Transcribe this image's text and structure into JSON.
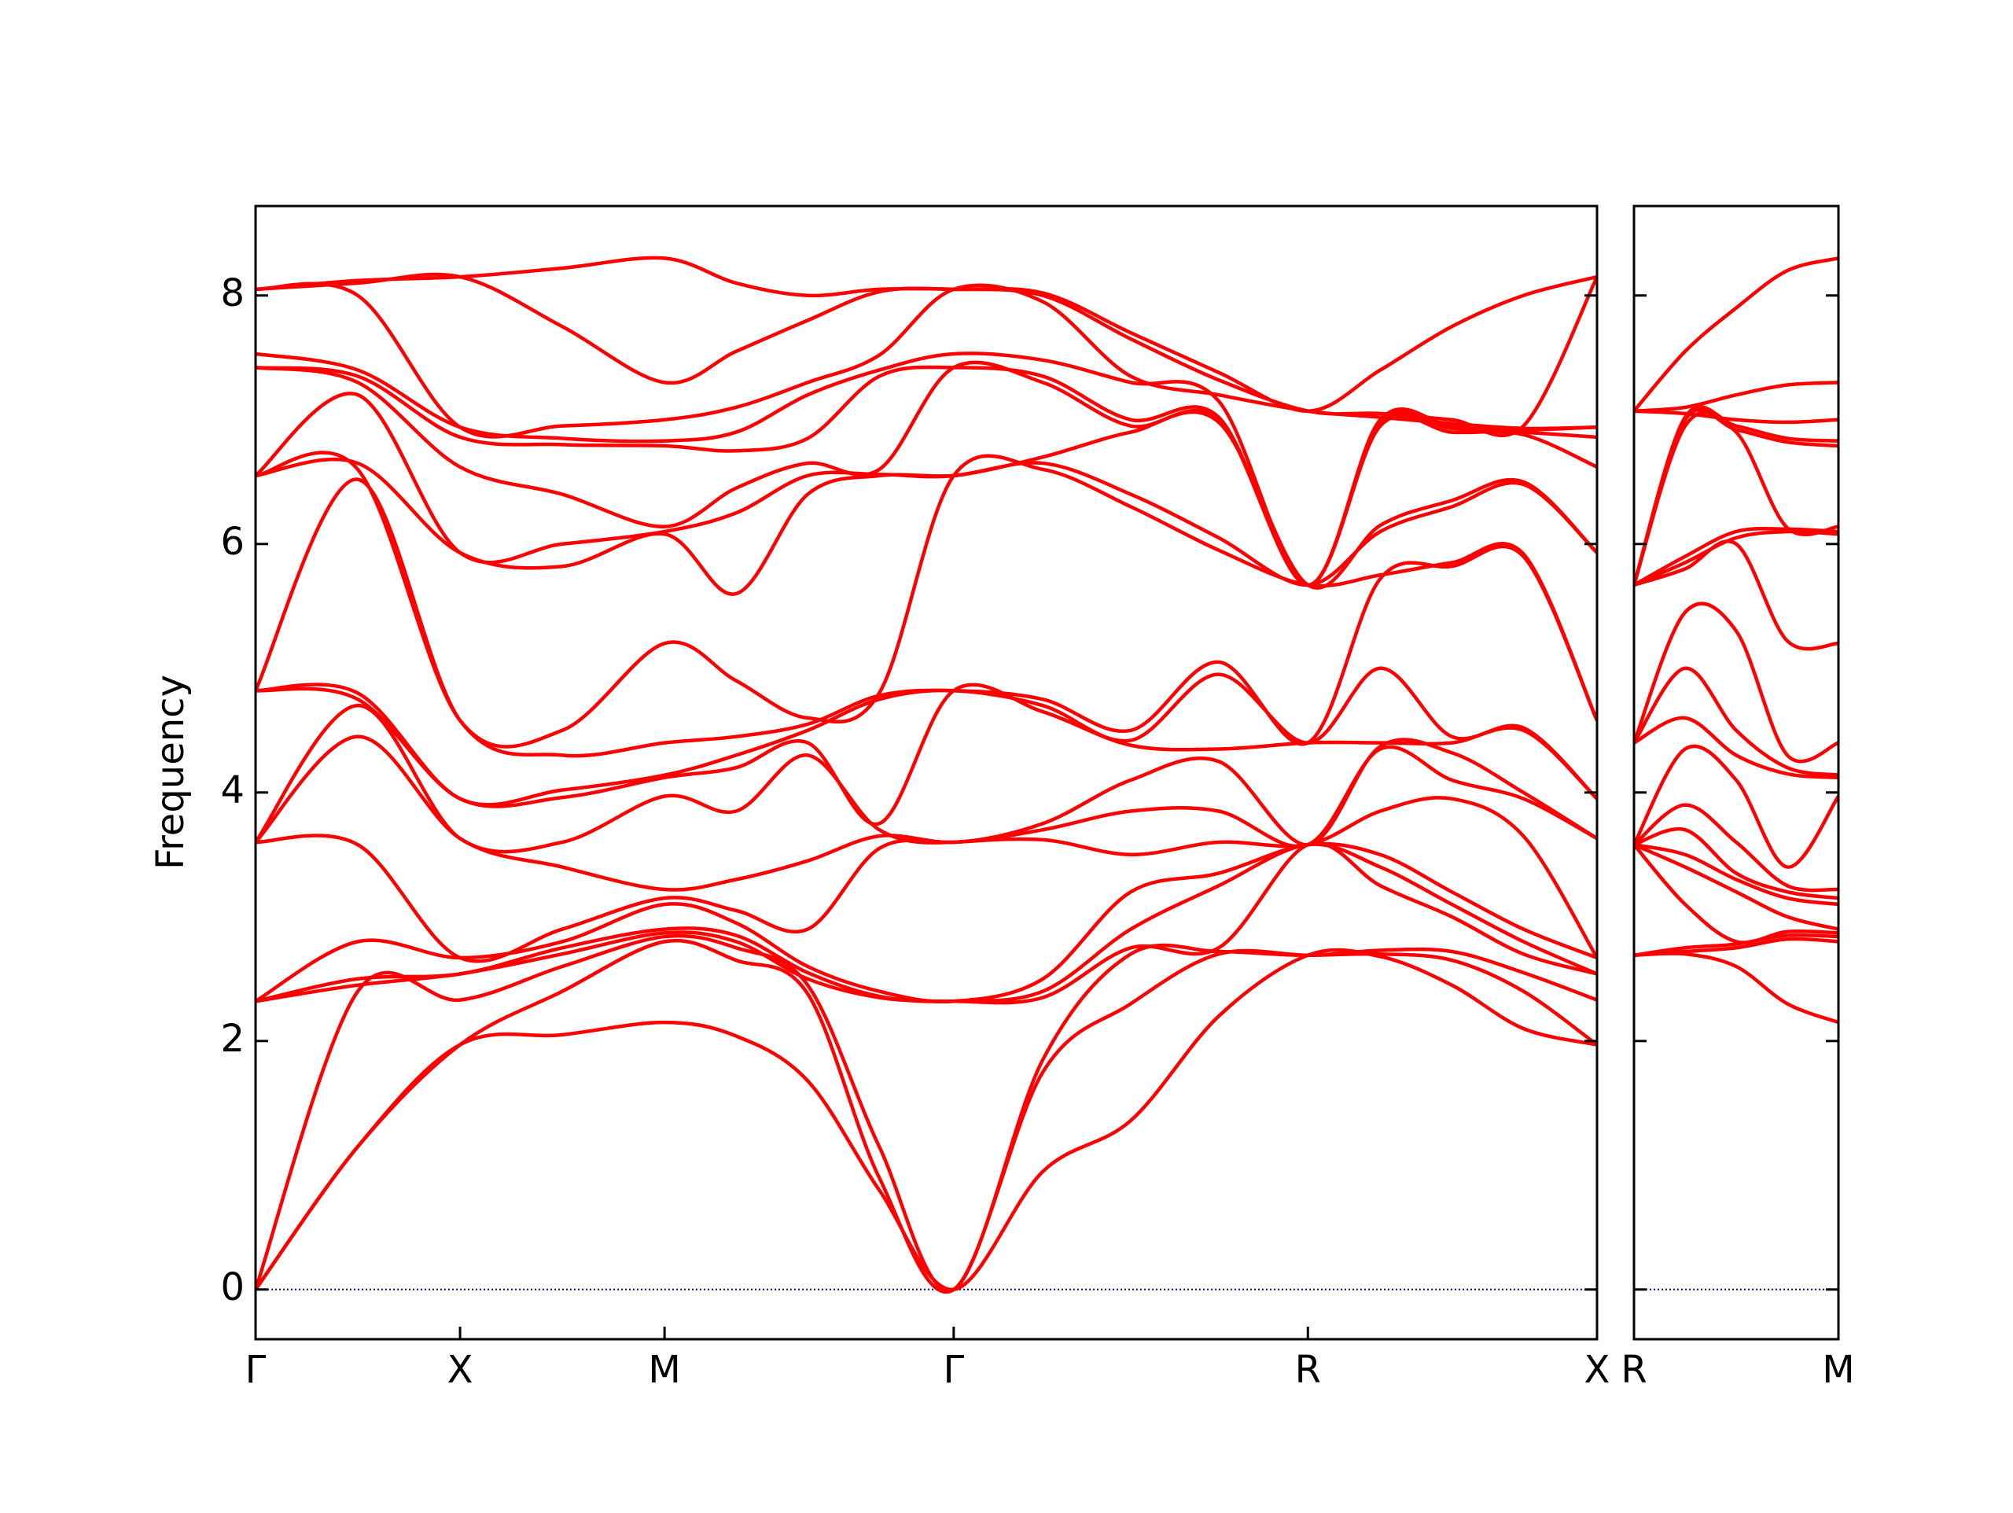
{
  "chart_data": [
    {
      "type": "line",
      "ylabel": "Frequency",
      "color": "#ff0000",
      "hline": 0,
      "hline_color": "#00008b",
      "xlim": [
        0,
        6.56
      ],
      "ylim": [
        -0.4,
        8.72
      ],
      "xticks": [
        {
          "value": 0,
          "label": "Γ"
        },
        {
          "value": 1,
          "label": "X"
        },
        {
          "value": 2,
          "label": "M"
        },
        {
          "value": 3.414,
          "label": "Γ"
        },
        {
          "value": 5.146,
          "label": "R"
        },
        {
          "value": 6.56,
          "label": "X"
        }
      ],
      "yticks": [
        0,
        2,
        4,
        6,
        8
      ],
      "x": [
        0,
        0.5,
        1,
        1.5,
        2,
        2.35,
        2.7,
        3.05,
        3.414,
        3.85,
        4.28,
        4.71,
        5.146,
        5.5,
        5.85,
        6.2,
        6.56
      ],
      "series": [
        {
          "values": [
            0,
            1.15,
            1.97,
            2.05,
            2.15,
            2.04,
            1.68,
            0.8,
            0,
            0.95,
            1.36,
            2.2,
            2.69,
            2.68,
            2.45,
            2.1,
            1.97
          ]
        },
        {
          "values": [
            0,
            1.15,
            1.97,
            2.4,
            2.8,
            2.65,
            2.38,
            0.9,
            0,
            1.75,
            2.3,
            2.7,
            2.69,
            2.7,
            2.65,
            2.4,
            1.97
          ]
        },
        {
          "values": [
            0,
            2.4,
            2.33,
            2.6,
            2.84,
            2.75,
            2.45,
            1.15,
            0,
            1.85,
            2.7,
            2.72,
            2.69,
            2.73,
            2.72,
            2.55,
            2.33
          ]
        },
        {
          "values": [
            2.32,
            2.45,
            2.54,
            2.7,
            2.87,
            2.8,
            2.5,
            2.35,
            2.32,
            2.35,
            2.75,
            2.75,
            3.58,
            3.25,
            3.0,
            2.7,
            2.54
          ]
        },
        {
          "values": [
            2.32,
            2.5,
            2.54,
            2.75,
            2.9,
            2.85,
            2.55,
            2.36,
            2.32,
            2.4,
            2.9,
            3.25,
            3.58,
            3.4,
            3.1,
            2.8,
            2.54
          ]
        },
        {
          "values": [
            2.32,
            2.8,
            2.67,
            2.8,
            3.1,
            2.95,
            2.6,
            2.4,
            2.32,
            2.5,
            3.2,
            3.35,
            3.58,
            3.5,
            3.2,
            2.9,
            2.67
          ]
        },
        {
          "values": [
            3.6,
            3.58,
            2.67,
            2.9,
            3.15,
            3.05,
            2.9,
            3.55,
            3.6,
            3.62,
            3.5,
            3.6,
            3.58,
            3.85,
            3.95,
            3.65,
            2.67
          ]
        },
        {
          "values": [
            3.6,
            4.45,
            3.63,
            3.4,
            3.22,
            3.3,
            3.45,
            3.65,
            3.6,
            3.7,
            3.85,
            3.85,
            3.58,
            4.35,
            4.1,
            3.95,
            3.63
          ]
        },
        {
          "values": [
            3.6,
            4.7,
            3.63,
            3.6,
            3.97,
            3.85,
            4.3,
            3.7,
            3.6,
            3.75,
            4.1,
            4.25,
            3.58,
            4.37,
            4.32,
            4.0,
            3.63
          ]
        },
        {
          "values": [
            4.82,
            4.75,
            3.95,
            3.96,
            4.12,
            4.2,
            4.4,
            3.75,
            4.82,
            4.65,
            4.38,
            4.35,
            4.4,
            4.4,
            4.4,
            4.5,
            3.95
          ]
        },
        {
          "values": [
            4.82,
            4.8,
            3.95,
            4.02,
            4.14,
            4.3,
            4.5,
            4.75,
            4.82,
            4.7,
            4.42,
            4.95,
            4.4,
            5.0,
            4.45,
            4.52,
            3.95
          ]
        },
        {
          "values": [
            4.82,
            6.52,
            4.58,
            4.3,
            4.4,
            4.45,
            4.55,
            4.78,
            4.82,
            4.75,
            4.5,
            5.05,
            4.4,
            5.72,
            5.82,
            5.9,
            4.58
          ]
        },
        {
          "values": [
            6.55,
            6.6,
            4.58,
            4.5,
            5.2,
            4.9,
            4.6,
            4.8,
            6.55,
            6.6,
            6.3,
            5.95,
            5.67,
            5.75,
            5.85,
            5.92,
            4.58
          ]
        },
        {
          "values": [
            6.55,
            6.65,
            5.93,
            5.82,
            6.08,
            5.6,
            6.4,
            6.55,
            6.55,
            6.65,
            6.4,
            6.05,
            5.67,
            6.1,
            6.3,
            6.48,
            5.93
          ]
        },
        {
          "values": [
            6.55,
            7.2,
            5.93,
            6.0,
            6.1,
            6.25,
            6.55,
            6.56,
            6.55,
            6.7,
            6.9,
            6.98,
            5.67,
            6.15,
            6.35,
            6.5,
            5.93
          ]
        },
        {
          "values": [
            7.42,
            7.3,
            6.62,
            6.4,
            6.14,
            6.45,
            6.65,
            6.6,
            7.42,
            7.3,
            6.95,
            7.0,
            5.67,
            6.95,
            6.9,
            6.88,
            6.62
          ]
        },
        {
          "values": [
            7.42,
            7.35,
            6.86,
            6.8,
            6.79,
            6.75,
            6.85,
            7.35,
            7.42,
            7.35,
            7.0,
            7.02,
            5.67,
            6.98,
            6.93,
            6.9,
            6.86
          ]
        },
        {
          "values": [
            7.53,
            7.4,
            6.94,
            6.85,
            6.83,
            6.9,
            7.2,
            7.4,
            7.53,
            7.48,
            7.3,
            7.15,
            5.67,
            7.0,
            6.95,
            6.92,
            6.94
          ]
        },
        {
          "values": [
            8.05,
            8.0,
            6.94,
            6.95,
            7.0,
            7.1,
            7.3,
            7.52,
            8.05,
            7.95,
            7.35,
            7.2,
            7.07,
            7.02,
            6.97,
            6.93,
            6.94
          ]
        },
        {
          "values": [
            8.05,
            8.1,
            8.15,
            7.75,
            7.3,
            7.55,
            7.8,
            8.03,
            8.05,
            8.0,
            7.65,
            7.32,
            7.07,
            7.05,
            7.0,
            6.95,
            8.15
          ]
        },
        {
          "values": [
            8.05,
            8.12,
            8.15,
            8.22,
            8.3,
            8.1,
            8.0,
            8.05,
            8.05,
            8.02,
            7.7,
            7.38,
            7.07,
            7.4,
            7.75,
            8.0,
            8.15
          ]
        }
      ]
    },
    {
      "type": "line",
      "color": "#ff0000",
      "hline": 0,
      "hline_color": "#00008b",
      "xlim": [
        0,
        1
      ],
      "ylim": [
        -0.4,
        8.72
      ],
      "xticks": [
        {
          "value": 0,
          "label": "R"
        },
        {
          "value": 1,
          "label": "M"
        }
      ],
      "yticks": [
        0,
        2,
        4,
        6,
        8
      ],
      "x": [
        0,
        0.25,
        0.5,
        0.75,
        1
      ],
      "series": [
        {
          "values": [
            2.69,
            2.7,
            2.6,
            2.3,
            2.15
          ]
        },
        {
          "values": [
            2.69,
            2.72,
            2.75,
            2.82,
            2.8
          ]
        },
        {
          "values": [
            2.69,
            2.75,
            2.78,
            2.85,
            2.84
          ]
        },
        {
          "values": [
            3.58,
            3.1,
            2.8,
            2.88,
            2.87
          ]
        },
        {
          "values": [
            3.58,
            3.4,
            3.2,
            3.0,
            2.9
          ]
        },
        {
          "values": [
            3.58,
            3.5,
            3.3,
            3.15,
            3.1
          ]
        },
        {
          "values": [
            3.58,
            3.7,
            3.35,
            3.2,
            3.15
          ]
        },
        {
          "values": [
            3.58,
            3.9,
            3.6,
            3.25,
            3.22
          ]
        },
        {
          "values": [
            3.58,
            4.35,
            4.1,
            3.4,
            3.97
          ]
        },
        {
          "values": [
            4.4,
            4.6,
            4.3,
            4.15,
            4.12
          ]
        },
        {
          "values": [
            4.4,
            5.0,
            4.5,
            4.2,
            4.14
          ]
        },
        {
          "values": [
            4.4,
            5.45,
            5.3,
            4.3,
            4.4
          ]
        },
        {
          "values": [
            5.67,
            5.8,
            6.0,
            5.22,
            5.2
          ]
        },
        {
          "values": [
            5.67,
            5.85,
            6.05,
            6.1,
            6.08
          ]
        },
        {
          "values": [
            5.67,
            5.9,
            6.1,
            6.12,
            6.1
          ]
        },
        {
          "values": [
            5.67,
            6.95,
            6.9,
            6.13,
            6.14
          ]
        },
        {
          "values": [
            5.67,
            7.0,
            6.92,
            6.82,
            6.79
          ]
        },
        {
          "values": [
            5.67,
            7.02,
            6.95,
            6.85,
            6.83
          ]
        },
        {
          "values": [
            7.07,
            7.05,
            7.0,
            6.98,
            7.0
          ]
        },
        {
          "values": [
            7.07,
            7.1,
            7.2,
            7.28,
            7.3
          ]
        },
        {
          "values": [
            7.07,
            7.55,
            7.9,
            8.2,
            8.3
          ]
        }
      ]
    }
  ]
}
